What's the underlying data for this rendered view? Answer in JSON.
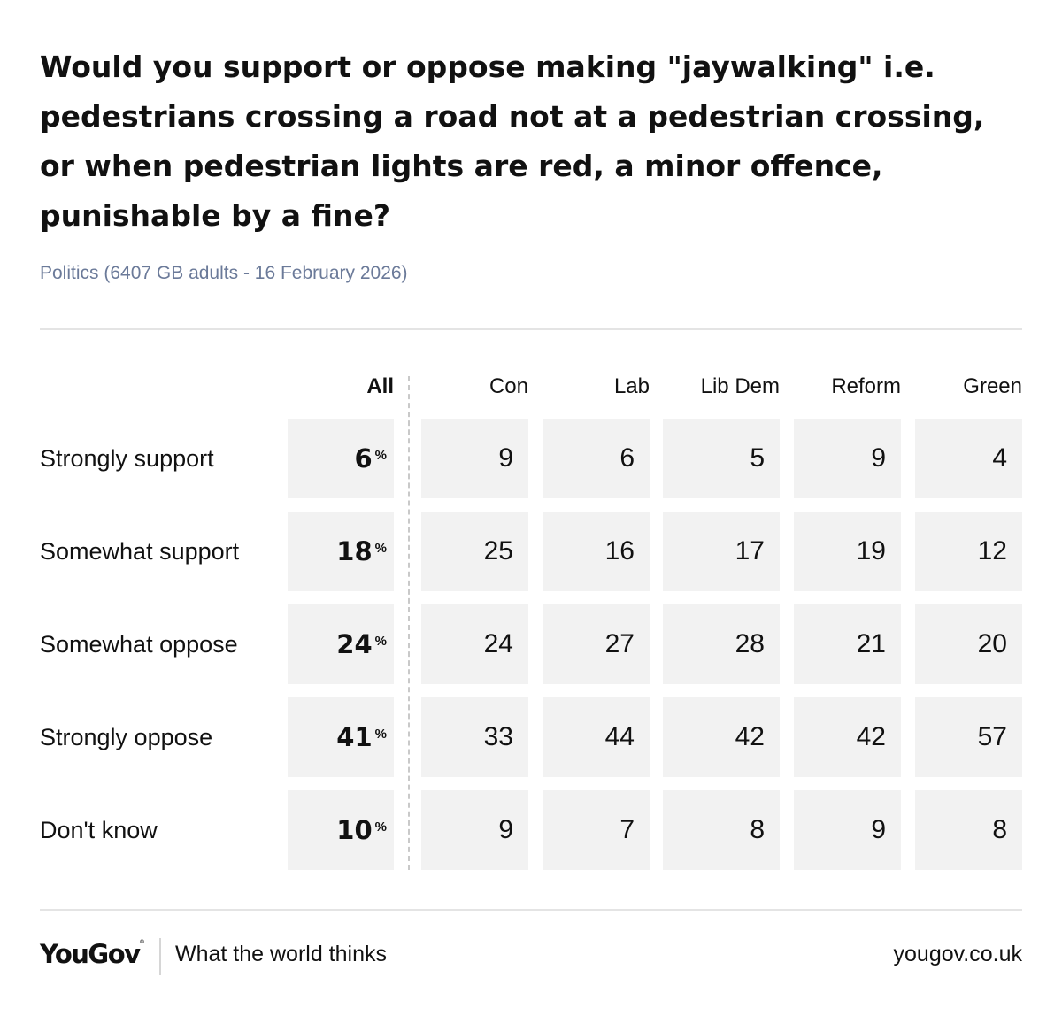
{
  "chart_data": {
    "type": "table",
    "title": "Would you support or oppose making \"jaywalking\" i.e. pedestrians crossing a road not at a pedestrian crossing, or when pedestrian lights are red, a minor offence, punishable by a fine?",
    "subtitle": "Politics (6407 GB adults - 16 February 2026)",
    "columns": [
      "All",
      "Con",
      "Lab",
      "Lib Dem",
      "Reform",
      "Green"
    ],
    "unit_symbol": "%",
    "rows": [
      {
        "label": "Strongly support",
        "values": [
          6,
          9,
          6,
          5,
          9,
          4
        ]
      },
      {
        "label": "Somewhat support",
        "values": [
          18,
          25,
          16,
          17,
          19,
          12
        ]
      },
      {
        "label": "Somewhat oppose",
        "values": [
          24,
          24,
          27,
          28,
          21,
          20
        ]
      },
      {
        "label": "Strongly oppose",
        "values": [
          41,
          33,
          44,
          42,
          42,
          57
        ]
      },
      {
        "label": "Don't know",
        "values": [
          10,
          9,
          7,
          8,
          9,
          8
        ]
      }
    ]
  },
  "footer": {
    "logo": "YouGov",
    "tagline": "What the world thinks",
    "site": "yougov.co.uk"
  }
}
